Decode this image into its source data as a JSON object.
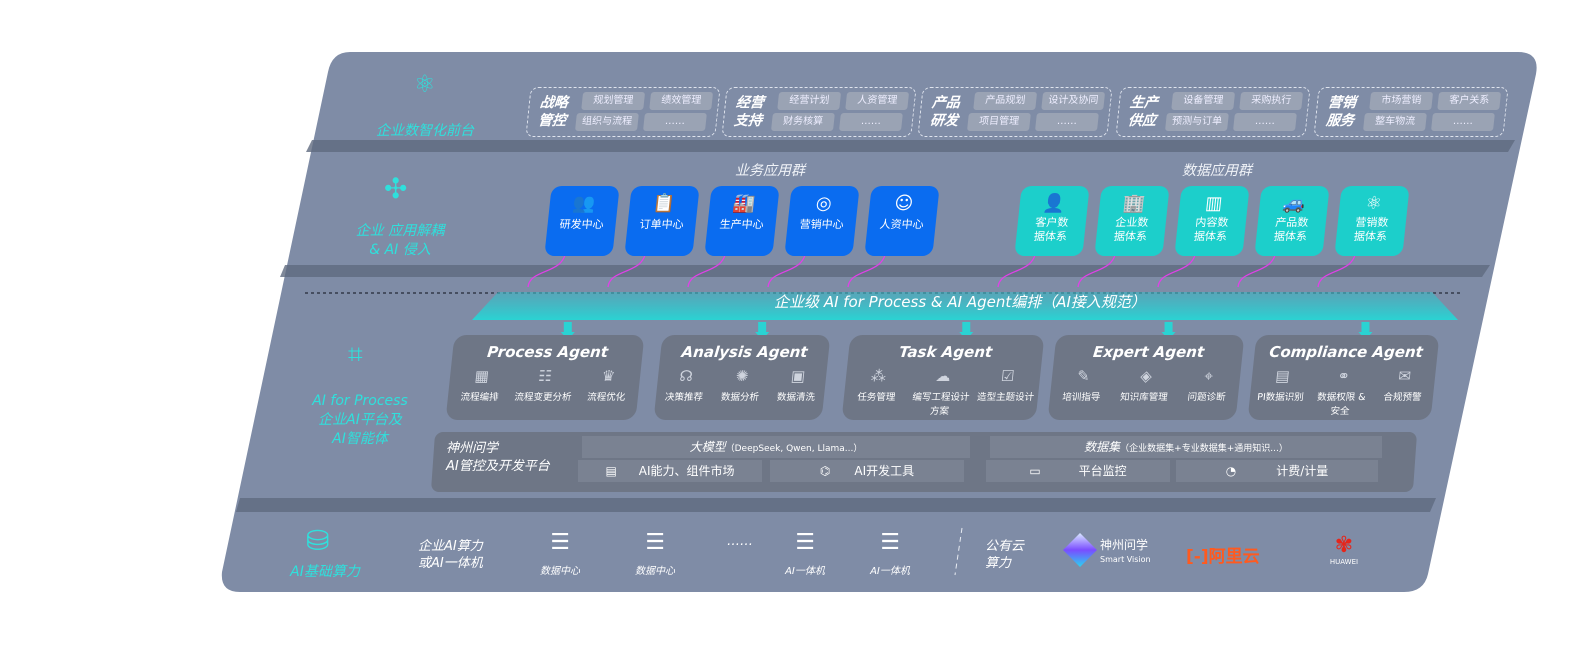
{
  "colors": {
    "panel": "#7f8ca6",
    "accent_teal": "#2fe0dc",
    "business_blue": "#0a6cf0",
    "data_teal": "#1ccfcb",
    "arrow_magenta": "#e040e8",
    "aliyun": "#ff5a1f",
    "huawei": "#e5261b"
  },
  "layers": {
    "frontend": {
      "label": "企业数智化前台",
      "icon": "brain-icon",
      "groups": [
        {
          "title": "战略管控",
          "items": [
            "规划管理",
            "绩效管理",
            "组织与流程",
            "……"
          ]
        },
        {
          "title": "经营支持",
          "items": [
            "经营计划",
            "人资管理",
            "财务核算",
            "……"
          ]
        },
        {
          "title": "产品研发",
          "items": [
            "产品规划",
            "设计及协同",
            "项目管理",
            "……"
          ]
        },
        {
          "title": "生产供应",
          "items": [
            "设备管理",
            "采购执行",
            "预测与订单",
            "……"
          ]
        },
        {
          "title": "营销服务",
          "items": [
            "市场营销",
            "客户关系",
            "整车物流",
            "……"
          ]
        }
      ]
    },
    "apps": {
      "label_line1": "企业 应用解耦",
      "label_line2": "& AI 侵入",
      "icon": "molecule-icon",
      "business_title": "业务应用群",
      "data_title": "数据应用群",
      "business": [
        {
          "label": "研发中心",
          "icon": "team-icon"
        },
        {
          "label": "订单中心",
          "icon": "clipboard-icon"
        },
        {
          "label": "生产中心",
          "icon": "factory-icon"
        },
        {
          "label": "营销中心",
          "icon": "target-icon"
        },
        {
          "label": "人资中心",
          "icon": "person-icon"
        }
      ],
      "data": [
        {
          "label": "客户数据体系",
          "icon": "user-icon"
        },
        {
          "label": "企业数据体系",
          "icon": "building-icon"
        },
        {
          "label": "内容数据体系",
          "icon": "books-icon"
        },
        {
          "label": "产品数据体系",
          "icon": "car-icon"
        },
        {
          "label": "营销数据体系",
          "icon": "atom-icon"
        }
      ]
    },
    "ai": {
      "label_line1": "AI for Process",
      "label_line2": "企业AI平台及",
      "label_line3": "AI智能体",
      "icon": "face-scan-icon",
      "orchestration": "企业级 AI for Process & AI Agent编排（AI接入规范）",
      "agents": [
        {
          "title": "Process Agent",
          "items": [
            "流程编排",
            "流程变更分析",
            "流程优化"
          ]
        },
        {
          "title": "Analysis Agent",
          "items": [
            "决策推荐",
            "数据分析",
            "数据清洗"
          ]
        },
        {
          "title": "Task Agent",
          "items": [
            "任务管理",
            "编写工程设计方案",
            "造型主题设计"
          ]
        },
        {
          "title": "Expert Agent",
          "items": [
            "培训指导",
            "知识库管理",
            "问题诊断"
          ]
        },
        {
          "title": "Compliance Agent",
          "items": [
            "PI数据识别",
            "数据权限 & 安全",
            "合规预警"
          ]
        }
      ],
      "platform": {
        "name_line1": "神州问学",
        "name_line2": "AI管控及开发平台",
        "model_title": "大模型",
        "model_note": "（DeepSeek, Qwen, Llama...）",
        "dataset_title": "数据集",
        "dataset_note": "（企业数据集+专业数据集+通用知识...）",
        "tools": [
          "AI能力、组件市场",
          "AI开发工具",
          "平台监控",
          "计费/计量"
        ]
      }
    },
    "compute": {
      "label": "AI基础算力",
      "icon": "database-icon",
      "enterprise_label_line1": "企业AI算力",
      "enterprise_label_line2": "或AI一体机",
      "resources": [
        "数据中心",
        "数据中心",
        "……",
        "AI一体机",
        "AI一体机"
      ],
      "public_label_line1": "公有云",
      "public_label_line2": "算力",
      "providers": {
        "sv_name": "神州问学",
        "sv_sub": "Smart Vision",
        "aliyun": "阿里云",
        "huawei": "HUAWEI"
      }
    }
  }
}
